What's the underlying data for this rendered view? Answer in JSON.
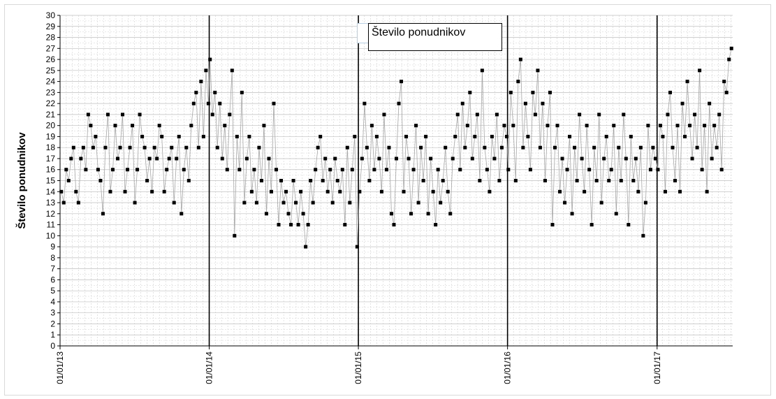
{
  "chart_data": {
    "type": "scatter",
    "connected": true,
    "ylabel": "Število ponudnikov",
    "ylim": [
      0,
      30
    ],
    "ytick_step": 1,
    "xlim": [
      "2013-01-01",
      "2017-07-05"
    ],
    "x_ticks": [
      "01/01/13",
      "01/01/14",
      "01/01/15",
      "01/01/16",
      "01/01/17"
    ],
    "year_dividers": [
      "2014-01-01",
      "2015-01-01",
      "2016-01-01",
      "2017-01-01"
    ],
    "legend": {
      "label": "Število ponudnikov",
      "position": "top-center"
    },
    "grid": true,
    "marker_color": "#000000",
    "line_color": "#a6a6a6",
    "series": [
      {
        "name": "Število ponudnikov",
        "points": [
          [
            "2013-01-04",
            14
          ],
          [
            "2013-01-10",
            13
          ],
          [
            "2013-01-16",
            16
          ],
          [
            "2013-01-22",
            15
          ],
          [
            "2013-01-28",
            17
          ],
          [
            "2013-02-03",
            18
          ],
          [
            "2013-02-09",
            14
          ],
          [
            "2013-02-15",
            13
          ],
          [
            "2013-02-21",
            17
          ],
          [
            "2013-02-27",
            18
          ],
          [
            "2013-03-05",
            16
          ],
          [
            "2013-03-11",
            21
          ],
          [
            "2013-03-17",
            20
          ],
          [
            "2013-03-23",
            18
          ],
          [
            "2013-03-29",
            19
          ],
          [
            "2013-04-04",
            16
          ],
          [
            "2013-04-10",
            15
          ],
          [
            "2013-04-16",
            12
          ],
          [
            "2013-04-22",
            18
          ],
          [
            "2013-04-28",
            21
          ],
          [
            "2013-05-04",
            14
          ],
          [
            "2013-05-10",
            16
          ],
          [
            "2013-05-16",
            20
          ],
          [
            "2013-05-22",
            17
          ],
          [
            "2013-05-28",
            18
          ],
          [
            "2013-06-03",
            21
          ],
          [
            "2013-06-09",
            14
          ],
          [
            "2013-06-15",
            16
          ],
          [
            "2013-06-21",
            18
          ],
          [
            "2013-06-27",
            20
          ],
          [
            "2013-07-03",
            13
          ],
          [
            "2013-07-09",
            16
          ],
          [
            "2013-07-15",
            21
          ],
          [
            "2013-07-21",
            19
          ],
          [
            "2013-07-27",
            18
          ],
          [
            "2013-08-02",
            15
          ],
          [
            "2013-08-08",
            17
          ],
          [
            "2013-08-14",
            14
          ],
          [
            "2013-08-20",
            18
          ],
          [
            "2013-08-26",
            17
          ],
          [
            "2013-09-01",
            20
          ],
          [
            "2013-09-07",
            19
          ],
          [
            "2013-09-13",
            14
          ],
          [
            "2013-09-19",
            16
          ],
          [
            "2013-09-25",
            17
          ],
          [
            "2013-10-01",
            18
          ],
          [
            "2013-10-07",
            13
          ],
          [
            "2013-10-13",
            17
          ],
          [
            "2013-10-19",
            19
          ],
          [
            "2013-10-25",
            12
          ],
          [
            "2013-10-31",
            16
          ],
          [
            "2013-11-06",
            18
          ],
          [
            "2013-11-12",
            15
          ],
          [
            "2013-11-18",
            20
          ],
          [
            "2013-11-24",
            22
          ],
          [
            "2013-11-30",
            23
          ],
          [
            "2013-12-06",
            18
          ],
          [
            "2013-12-12",
            24
          ],
          [
            "2013-12-18",
            19
          ],
          [
            "2013-12-24",
            25
          ],
          [
            "2013-12-30",
            22
          ],
          [
            "2014-01-03",
            26
          ],
          [
            "2014-01-09",
            21
          ],
          [
            "2014-01-15",
            23
          ],
          [
            "2014-01-21",
            18
          ],
          [
            "2014-01-27",
            22
          ],
          [
            "2014-02-02",
            17
          ],
          [
            "2014-02-08",
            20
          ],
          [
            "2014-02-14",
            16
          ],
          [
            "2014-02-20",
            21
          ],
          [
            "2014-02-26",
            25
          ],
          [
            "2014-03-04",
            10
          ],
          [
            "2014-03-10",
            19
          ],
          [
            "2014-03-16",
            16
          ],
          [
            "2014-03-22",
            23
          ],
          [
            "2014-03-28",
            13
          ],
          [
            "2014-04-03",
            17
          ],
          [
            "2014-04-09",
            19
          ],
          [
            "2014-04-15",
            14
          ],
          [
            "2014-04-21",
            16
          ],
          [
            "2014-04-27",
            13
          ],
          [
            "2014-05-03",
            18
          ],
          [
            "2014-05-09",
            15
          ],
          [
            "2014-05-15",
            20
          ],
          [
            "2014-05-21",
            12
          ],
          [
            "2014-05-27",
            17
          ],
          [
            "2014-06-02",
            14
          ],
          [
            "2014-06-08",
            22
          ],
          [
            "2014-06-14",
            16
          ],
          [
            "2014-06-20",
            11
          ],
          [
            "2014-06-26",
            15
          ],
          [
            "2014-07-02",
            13
          ],
          [
            "2014-07-08",
            14
          ],
          [
            "2014-07-14",
            12
          ],
          [
            "2014-07-20",
            11
          ],
          [
            "2014-07-26",
            15
          ],
          [
            "2014-08-01",
            13
          ],
          [
            "2014-08-07",
            11
          ],
          [
            "2014-08-13",
            14
          ],
          [
            "2014-08-19",
            12
          ],
          [
            "2014-08-25",
            9
          ],
          [
            "2014-08-31",
            11
          ],
          [
            "2014-09-06",
            15
          ],
          [
            "2014-09-12",
            13
          ],
          [
            "2014-09-18",
            16
          ],
          [
            "2014-09-24",
            18
          ],
          [
            "2014-09-30",
            19
          ],
          [
            "2014-10-06",
            15
          ],
          [
            "2014-10-12",
            17
          ],
          [
            "2014-10-18",
            14
          ],
          [
            "2014-10-24",
            16
          ],
          [
            "2014-10-30",
            13
          ],
          [
            "2014-11-05",
            17
          ],
          [
            "2014-11-11",
            15
          ],
          [
            "2014-11-17",
            14
          ],
          [
            "2014-11-23",
            16
          ],
          [
            "2014-11-29",
            11
          ],
          [
            "2014-12-05",
            18
          ],
          [
            "2014-12-11",
            13
          ],
          [
            "2014-12-17",
            16
          ],
          [
            "2014-12-23",
            19
          ],
          [
            "2014-12-29",
            9
          ],
          [
            "2015-01-04",
            14
          ],
          [
            "2015-01-10",
            17
          ],
          [
            "2015-01-16",
            22
          ],
          [
            "2015-01-22",
            18
          ],
          [
            "2015-01-28",
            15
          ],
          [
            "2015-02-03",
            20
          ],
          [
            "2015-02-09",
            16
          ],
          [
            "2015-02-15",
            19
          ],
          [
            "2015-02-21",
            17
          ],
          [
            "2015-02-27",
            14
          ],
          [
            "2015-03-05",
            21
          ],
          [
            "2015-03-11",
            16
          ],
          [
            "2015-03-17",
            18
          ],
          [
            "2015-03-23",
            12
          ],
          [
            "2015-03-29",
            11
          ],
          [
            "2015-04-04",
            17
          ],
          [
            "2015-04-10",
            22
          ],
          [
            "2015-04-16",
            24
          ],
          [
            "2015-04-22",
            14
          ],
          [
            "2015-04-28",
            19
          ],
          [
            "2015-05-04",
            17
          ],
          [
            "2015-05-10",
            12
          ],
          [
            "2015-05-16",
            16
          ],
          [
            "2015-05-22",
            20
          ],
          [
            "2015-05-28",
            13
          ],
          [
            "2015-06-03",
            18
          ],
          [
            "2015-06-09",
            15
          ],
          [
            "2015-06-15",
            19
          ],
          [
            "2015-06-21",
            12
          ],
          [
            "2015-06-27",
            17
          ],
          [
            "2015-07-03",
            14
          ],
          [
            "2015-07-09",
            11
          ],
          [
            "2015-07-15",
            16
          ],
          [
            "2015-07-21",
            13
          ],
          [
            "2015-07-27",
            15
          ],
          [
            "2015-08-02",
            18
          ],
          [
            "2015-08-08",
            14
          ],
          [
            "2015-08-14",
            12
          ],
          [
            "2015-08-20",
            17
          ],
          [
            "2015-08-26",
            19
          ],
          [
            "2015-09-01",
            21
          ],
          [
            "2015-09-07",
            16
          ],
          [
            "2015-09-13",
            22
          ],
          [
            "2015-09-19",
            18
          ],
          [
            "2015-09-25",
            20
          ],
          [
            "2015-10-01",
            23
          ],
          [
            "2015-10-07",
            17
          ],
          [
            "2015-10-13",
            19
          ],
          [
            "2015-10-19",
            21
          ],
          [
            "2015-10-25",
            15
          ],
          [
            "2015-10-31",
            25
          ],
          [
            "2015-11-06",
            18
          ],
          [
            "2015-11-12",
            16
          ],
          [
            "2015-11-18",
            14
          ],
          [
            "2015-11-24",
            19
          ],
          [
            "2015-11-30",
            17
          ],
          [
            "2015-12-06",
            21
          ],
          [
            "2015-12-12",
            15
          ],
          [
            "2015-12-18",
            18
          ],
          [
            "2015-12-24",
            20
          ],
          [
            "2015-12-30",
            19
          ],
          [
            "2016-01-03",
            16
          ],
          [
            "2016-01-09",
            23
          ],
          [
            "2016-01-15",
            20
          ],
          [
            "2016-01-21",
            15
          ],
          [
            "2016-01-27",
            24
          ],
          [
            "2016-02-02",
            26
          ],
          [
            "2016-02-08",
            18
          ],
          [
            "2016-02-14",
            22
          ],
          [
            "2016-02-20",
            19
          ],
          [
            "2016-02-26",
            16
          ],
          [
            "2016-03-03",
            23
          ],
          [
            "2016-03-09",
            21
          ],
          [
            "2016-03-15",
            25
          ],
          [
            "2016-03-21",
            18
          ],
          [
            "2016-03-27",
            22
          ],
          [
            "2016-04-02",
            15
          ],
          [
            "2016-04-08",
            20
          ],
          [
            "2016-04-14",
            23
          ],
          [
            "2016-04-20",
            11
          ],
          [
            "2016-04-26",
            18
          ],
          [
            "2016-05-02",
            20
          ],
          [
            "2016-05-08",
            14
          ],
          [
            "2016-05-14",
            17
          ],
          [
            "2016-05-20",
            13
          ],
          [
            "2016-05-26",
            16
          ],
          [
            "2016-06-01",
            19
          ],
          [
            "2016-06-07",
            12
          ],
          [
            "2016-06-13",
            18
          ],
          [
            "2016-06-19",
            15
          ],
          [
            "2016-06-25",
            21
          ],
          [
            "2016-07-01",
            17
          ],
          [
            "2016-07-07",
            14
          ],
          [
            "2016-07-13",
            20
          ],
          [
            "2016-07-19",
            16
          ],
          [
            "2016-07-25",
            11
          ],
          [
            "2016-07-31",
            18
          ],
          [
            "2016-08-06",
            15
          ],
          [
            "2016-08-12",
            21
          ],
          [
            "2016-08-18",
            13
          ],
          [
            "2016-08-24",
            17
          ],
          [
            "2016-08-30",
            19
          ],
          [
            "2016-09-05",
            15
          ],
          [
            "2016-09-11",
            16
          ],
          [
            "2016-09-17",
            20
          ],
          [
            "2016-09-23",
            12
          ],
          [
            "2016-09-29",
            18
          ],
          [
            "2016-10-05",
            15
          ],
          [
            "2016-10-11",
            21
          ],
          [
            "2016-10-17",
            17
          ],
          [
            "2016-10-23",
            11
          ],
          [
            "2016-10-29",
            19
          ],
          [
            "2016-11-04",
            15
          ],
          [
            "2016-11-10",
            17
          ],
          [
            "2016-11-16",
            14
          ],
          [
            "2016-11-22",
            18
          ],
          [
            "2016-11-28",
            10
          ],
          [
            "2016-12-04",
            13
          ],
          [
            "2016-12-10",
            20
          ],
          [
            "2016-12-16",
            16
          ],
          [
            "2016-12-22",
            18
          ],
          [
            "2016-12-28",
            17
          ],
          [
            "2017-01-03",
            16
          ],
          [
            "2017-01-09",
            20
          ],
          [
            "2017-01-15",
            19
          ],
          [
            "2017-01-21",
            14
          ],
          [
            "2017-01-27",
            21
          ],
          [
            "2017-02-02",
            23
          ],
          [
            "2017-02-08",
            18
          ],
          [
            "2017-02-14",
            15
          ],
          [
            "2017-02-20",
            20
          ],
          [
            "2017-02-26",
            14
          ],
          [
            "2017-03-04",
            22
          ],
          [
            "2017-03-10",
            19
          ],
          [
            "2017-03-16",
            24
          ],
          [
            "2017-03-22",
            20
          ],
          [
            "2017-03-28",
            17
          ],
          [
            "2017-04-03",
            21
          ],
          [
            "2017-04-09",
            18
          ],
          [
            "2017-04-15",
            25
          ],
          [
            "2017-04-21",
            16
          ],
          [
            "2017-04-27",
            20
          ],
          [
            "2017-05-03",
            14
          ],
          [
            "2017-05-09",
            22
          ],
          [
            "2017-05-15",
            17
          ],
          [
            "2017-05-21",
            20
          ],
          [
            "2017-05-27",
            18
          ],
          [
            "2017-06-02",
            21
          ],
          [
            "2017-06-08",
            16
          ],
          [
            "2017-06-14",
            24
          ],
          [
            "2017-06-20",
            23
          ],
          [
            "2017-06-26",
            26
          ],
          [
            "2017-07-02",
            27
          ]
        ]
      }
    ]
  }
}
